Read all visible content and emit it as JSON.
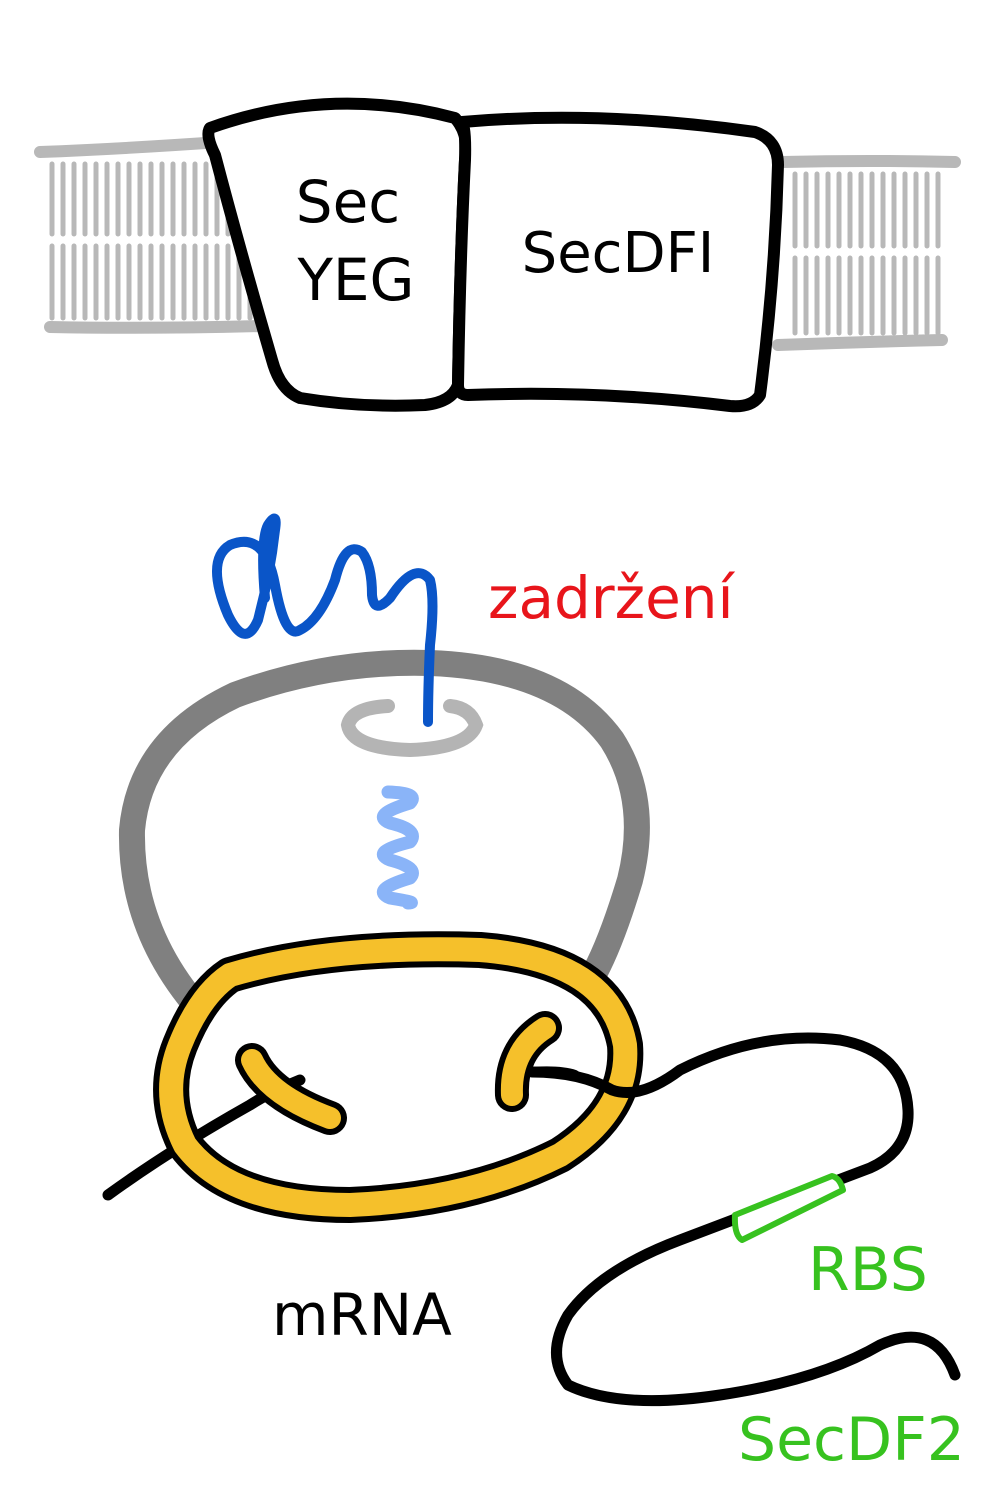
{
  "labels": {
    "secyeg_line1": "Sec",
    "secyeg_line2": "YEG",
    "secdfi": "SecDFI",
    "stalled": "zadržení",
    "mrna": "mRNA",
    "rbs": "RBS",
    "secdf2": "SecDF2"
  },
  "colors": {
    "membrane": "#b8b8b8",
    "outline": "#000000",
    "ribosome_large": "#808080",
    "ribosome_small": "#f5c02b",
    "nascent_chain": "#0a55c8",
    "helix": "#8ab4f8",
    "exit_tunnel": "#b4b4b4",
    "stalled_text": "#e8151b",
    "rbs": "#37c21f"
  }
}
